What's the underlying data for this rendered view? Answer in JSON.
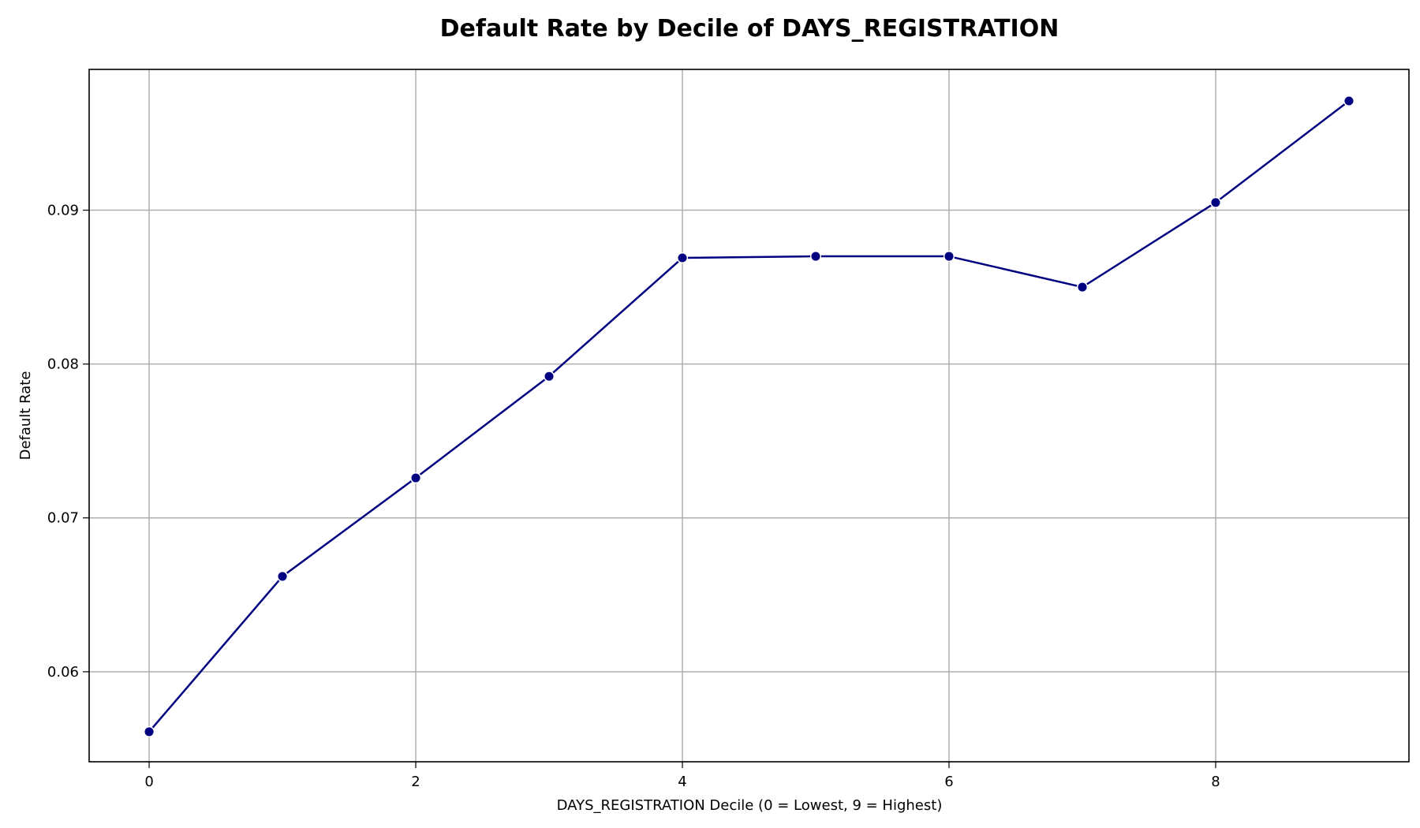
{
  "chart_data": {
    "type": "line",
    "title": "Default Rate by Decile of DAYS_REGISTRATION",
    "xlabel": "DAYS_REGISTRATION Decile (0 = Lowest, 9 = Highest)",
    "ylabel": "Default Rate",
    "x": [
      0,
      1,
      2,
      3,
      4,
      5,
      6,
      7,
      8,
      9
    ],
    "series": [
      {
        "values": [
          0.0561,
          0.0662,
          0.0726,
          0.0792,
          0.0869,
          0.087,
          0.087,
          0.085,
          0.0905,
          0.0971
        ],
        "color": "#000080",
        "marker": "circle"
      }
    ],
    "xlim": [
      -0.45,
      9.45
    ],
    "ylim": [
      0.05415,
      0.09915
    ],
    "x_ticks": [
      "0",
      "2",
      "4",
      "6",
      "8"
    ],
    "y_ticks": [
      "0.06",
      "0.07",
      "0.08",
      "0.09"
    ],
    "grid": true,
    "legend": "none"
  }
}
